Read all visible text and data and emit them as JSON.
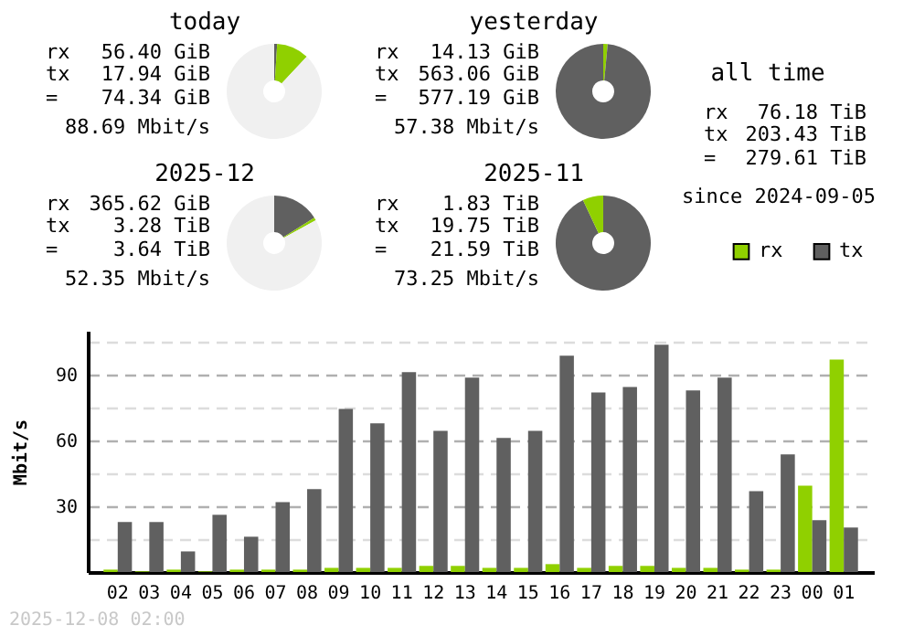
{
  "chart_data": [
    {
      "type": "donut",
      "title": "today",
      "categories": [
        null,
        null,
        null
      ],
      "values": [
        1,
        11,
        88
      ],
      "colors": [
        "#606060",
        "#90d000",
        "#f0f0f0"
      ],
      "annotations": [
        "rx",
        "56.40 GiB",
        "tx",
        "17.94 GiB",
        "=",
        "74.34 GiB",
        "88.69 Mbit/s"
      ]
    },
    {
      "type": "donut",
      "title": "yesterday",
      "categories": [
        null,
        null
      ],
      "values": [
        1.5,
        98.5
      ],
      "colors": [
        "#90d000",
        "#606060"
      ],
      "annotations": [
        "rx",
        "14.13 GiB",
        "tx",
        "563.06 GiB",
        "=",
        "577.19 GiB",
        "57.38 Mbit/s"
      ]
    },
    {
      "type": "other",
      "title": "all time",
      "annotations": [
        "rx",
        "76.18 TiB",
        "tx",
        "203.43 TiB",
        "=",
        "279.61 TiB",
        "since 2024-09-05"
      ]
    },
    {
      "type": "donut",
      "title": "2025-12",
      "categories": [
        null,
        null,
        null
      ],
      "values": [
        16,
        1,
        83
      ],
      "colors": [
        "#606060",
        "#90d000",
        "#f0f0f0"
      ],
      "annotations": [
        "rx",
        "365.62 GiB",
        "tx",
        "3.28 TiB",
        "=",
        "3.64 TiB",
        "52.35 Mbit/s"
      ]
    },
    {
      "type": "donut",
      "title": "2025-11",
      "categories": [
        null,
        null
      ],
      "values": [
        93,
        7
      ],
      "colors": [
        "#606060",
        "#90d000"
      ],
      "annotations": [
        "rx",
        "1.83 TiB",
        "tx",
        "19.75 TiB",
        "=",
        "21.59 TiB",
        "73.25 Mbit/s"
      ]
    },
    {
      "type": "bar",
      "ylabel": "Mbit/s",
      "legend": "top right",
      "grid": "y",
      "categories": [
        "02",
        "03",
        "04",
        "05",
        "06",
        "07",
        "08",
        "09",
        "10",
        "11",
        "12",
        "13",
        "14",
        "15",
        "16",
        "17",
        "18",
        "19",
        "20",
        "21",
        "22",
        "23",
        "00",
        "01"
      ],
      "series": [
        {
          "name": "rx",
          "color": "#90d000",
          "values": [
            1.1,
            0.3,
            1.1,
            0.3,
            1.1,
            1.1,
            1.1,
            1.9,
            1.9,
            1.9,
            2.8,
            2.8,
            1.9,
            1.9,
            3.6,
            1.9,
            2.8,
            2.8,
            1.9,
            1.9,
            1.1,
            1.1,
            39.4,
            96.9
          ]
        },
        {
          "name": "tx",
          "color": "#606060",
          "values": [
            22.8,
            22.8,
            9.4,
            26.1,
            16.1,
            31.9,
            37.8,
            74.4,
            67.8,
            91.1,
            64.4,
            88.6,
            61.1,
            64.4,
            98.6,
            81.9,
            84.4,
            103.6,
            82.8,
            88.6,
            36.9,
            53.6,
            23.6,
            20.3
          ]
        }
      ],
      "ylim": [
        0,
        110
      ],
      "yticks": [
        {
          "value": 15,
          "label": null
        },
        30,
        {
          "value": 45,
          "label": null
        },
        60,
        {
          "value": 75,
          "label": null
        },
        90,
        {
          "value": 105,
          "label": null
        }
      ],
      "annotations": [
        "2025-12-08 02:00"
      ]
    }
  ]
}
